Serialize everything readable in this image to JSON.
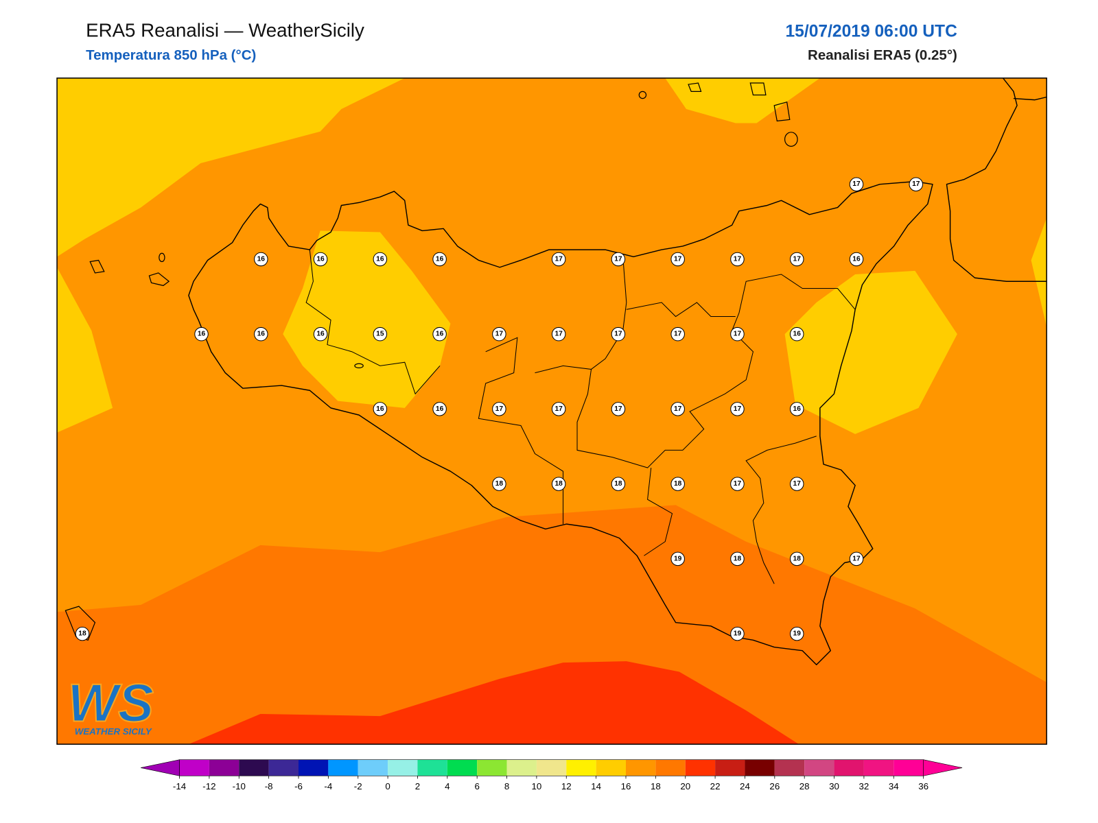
{
  "header": {
    "title": "ERA5 Reanalisi — WeatherSicily",
    "subtitle": "Temperatura 850 hPa (°C)",
    "datetime": "15/07/2019 06:00 UTC",
    "source": "Reanalisi ERA5 (0.25°)"
  },
  "stations": {
    "rows": [
      [
        null,
        null,
        null,
        null,
        null,
        null,
        null,
        null,
        null,
        null,
        null,
        null,
        null,
        17,
        17
      ],
      [
        null,
        null,
        null,
        16,
        16,
        16,
        16,
        null,
        17,
        17,
        17,
        17,
        17,
        16,
        null
      ],
      [
        null,
        null,
        16,
        16,
        16,
        15,
        16,
        17,
        17,
        17,
        17,
        17,
        16,
        null,
        null
      ],
      [
        null,
        null,
        null,
        null,
        null,
        16,
        16,
        17,
        17,
        17,
        17,
        17,
        16,
        null,
        null
      ],
      [
        null,
        null,
        null,
        null,
        null,
        null,
        null,
        18,
        18,
        18,
        18,
        17,
        17,
        null,
        null
      ],
      [
        null,
        null,
        null,
        null,
        null,
        null,
        null,
        null,
        null,
        null,
        19,
        18,
        18,
        17,
        null
      ],
      [
        18,
        null,
        null,
        null,
        null,
        null,
        null,
        null,
        null,
        null,
        null,
        19,
        19,
        null,
        null
      ]
    ]
  },
  "colorbar": {
    "ticks": [
      -14,
      -12,
      -10,
      -8,
      -6,
      -4,
      -2,
      0,
      2,
      4,
      6,
      8,
      10,
      12,
      14,
      16,
      18,
      20,
      22,
      24,
      26,
      28,
      30,
      32,
      34,
      36
    ],
    "colors": [
      "#c000c8",
      "#8c0096",
      "#2d0a50",
      "#3c2896",
      "#0014b4",
      "#0096ff",
      "#6ecdfa",
      "#96f0e6",
      "#1ee196",
      "#00dc50",
      "#8ce632",
      "#dcf08c",
      "#f0e68c",
      "#fff000",
      "#ffcd00",
      "#ff9600",
      "#ff7800",
      "#ff3200",
      "#c81e14",
      "#780000",
      "#b43250",
      "#d24682",
      "#e1146e",
      "#f01482",
      "#ff0096"
    ],
    "under_color": "#a000b4",
    "over_color": "#ff0096"
  },
  "logo": {
    "mark": "WS",
    "name": "WEATHER SICILY"
  }
}
